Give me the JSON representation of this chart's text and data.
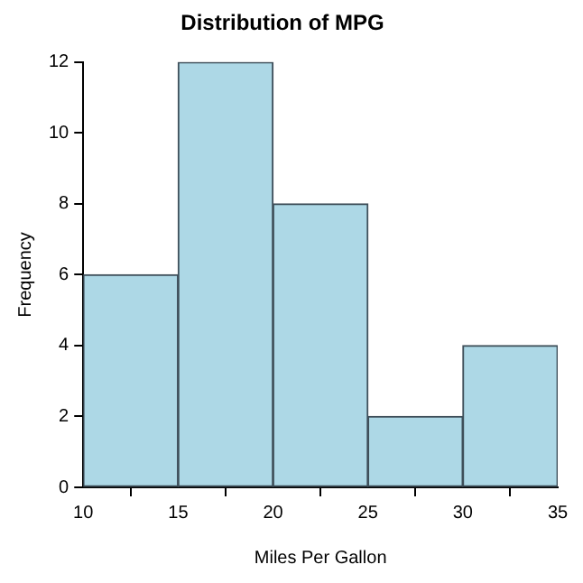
{
  "chart_data": {
    "type": "histogram",
    "title": "Distribution of MPG",
    "xlabel": "Miles Per Gallon",
    "ylabel": "Frequency",
    "bins": [
      10,
      15,
      20,
      25,
      30,
      35
    ],
    "values": [
      6,
      12,
      8,
      2,
      4
    ],
    "color": "#add8e6",
    "xlim": [
      10,
      35
    ],
    "xticks": [
      10,
      15,
      20,
      25,
      30,
      35
    ],
    "ylim": [
      0,
      12
    ],
    "yticks": [
      0,
      2,
      4,
      6,
      8,
      10,
      12
    ],
    "grid": false,
    "legend": false
  }
}
